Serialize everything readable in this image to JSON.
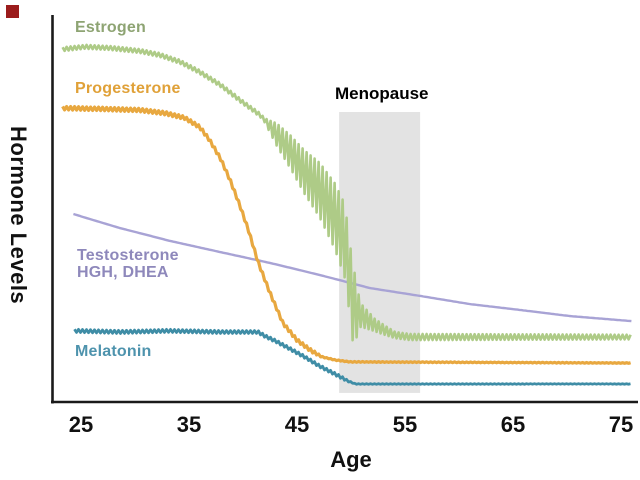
{
  "marker": {
    "name": "red-corner-marker",
    "color": "#9b1c1c"
  },
  "chart_data": {
    "type": "line",
    "title": "",
    "xlabel": "Age",
    "ylabel": "Hormone Levels",
    "x_range": [
      23,
      76
    ],
    "x_ticks": [
      25,
      35,
      45,
      55,
      65,
      75
    ],
    "x_tick_labels": [
      "25",
      "35",
      "45",
      "55",
      "65",
      "75"
    ],
    "y_axis_note": "unlabeled relative hormone level, 0-100 scale",
    "grid": "off",
    "legend_position": "labels drawn beside each curve",
    "axis_color": "#1a1a1a",
    "annotations": [
      {
        "label": "Menopause",
        "type": "shaded-band",
        "age_start": 48.9,
        "age_end": 56.4,
        "level_top": 75.0,
        "level_bottom": 2.6,
        "band_color": "#e3e3e3"
      }
    ],
    "series": [
      {
        "name": "Testosterone, HGH, DHEA",
        "label_lines": [
          "Testosterone",
          "HGH, DHEA"
        ],
        "line_color": "#a8a3d5",
        "label_color": "#8e88bb",
        "stroke_width": 2.4,
        "points": [
          [
            24.3,
            48.7
          ],
          [
            28.6,
            45.1
          ],
          [
            33.2,
            41.8
          ],
          [
            37.9,
            38.9
          ],
          [
            42.5,
            36.1
          ],
          [
            47.1,
            33.0
          ],
          [
            51.8,
            29.6
          ],
          [
            56.4,
            27.6
          ],
          [
            61.0,
            25.5
          ],
          [
            65.6,
            24.0
          ],
          [
            70.3,
            22.4
          ],
          [
            76.0,
            21.1
          ]
        ],
        "oscillation": []
      },
      {
        "name": "Melatonin",
        "label_lines": [
          "Melatonin"
        ],
        "line_color": "#3f8da6",
        "label_color": "#4e93ad",
        "stroke_width": 2.8,
        "points": [
          [
            24.4,
            18.6
          ],
          [
            28.6,
            18.3
          ],
          [
            33.2,
            18.6
          ],
          [
            37.9,
            18.3
          ],
          [
            41.4,
            18.3
          ],
          [
            42.0,
            17.3
          ],
          [
            43.0,
            16.0
          ],
          [
            44.4,
            13.9
          ],
          [
            45.7,
            11.9
          ],
          [
            47.1,
            9.5
          ],
          [
            48.5,
            7.5
          ],
          [
            49.7,
            5.7
          ],
          [
            50.4,
            4.9
          ],
          [
            76.0,
            4.9
          ]
        ],
        "oscillation": [
          [
            24.4,
            0.4
          ],
          [
            49.2,
            0.35
          ],
          [
            50.2,
            0.08
          ],
          [
            76.0,
            0.06
          ]
        ]
      },
      {
        "name": "Progesterone",
        "label_lines": [
          "Progesterone"
        ],
        "line_color": "#e8a840",
        "label_color": "#e0a138",
        "stroke_width": 3.2,
        "points": [
          [
            23.3,
            76.0
          ],
          [
            26.8,
            75.8
          ],
          [
            30.5,
            75.5
          ],
          [
            32.8,
            74.7
          ],
          [
            34.6,
            73.5
          ],
          [
            36.0,
            71.1
          ],
          [
            36.9,
            67.8
          ],
          [
            37.9,
            63.1
          ],
          [
            38.8,
            57.5
          ],
          [
            39.7,
            51.0
          ],
          [
            40.5,
            44.6
          ],
          [
            41.4,
            36.3
          ],
          [
            42.5,
            28.4
          ],
          [
            43.7,
            20.6
          ],
          [
            45.0,
            16.2
          ],
          [
            46.2,
            13.7
          ],
          [
            47.3,
            11.9
          ],
          [
            48.5,
            11.1
          ],
          [
            49.9,
            10.6
          ],
          [
            76.0,
            10.3
          ]
        ],
        "oscillation": [
          [
            23.3,
            0.45
          ],
          [
            46.5,
            0.4
          ],
          [
            47.5,
            0.1
          ],
          [
            76.0,
            0.08
          ]
        ]
      },
      {
        "name": "Estrogen",
        "label_lines": [
          "Estrogen"
        ],
        "line_color": "#aecb87",
        "label_color": "#8ea473",
        "stroke_width": 2.6,
        "points": [
          [
            23.3,
            91.2
          ],
          [
            25.4,
            91.8
          ],
          [
            27.7,
            91.5
          ],
          [
            30.5,
            90.7
          ],
          [
            32.3,
            89.7
          ],
          [
            34.2,
            87.9
          ],
          [
            36.0,
            85.3
          ],
          [
            37.9,
            82.0
          ],
          [
            39.7,
            78.1
          ],
          [
            41.6,
            74.2
          ],
          [
            43.0,
            69.6
          ],
          [
            44.4,
            64.7
          ],
          [
            45.7,
            59.5
          ],
          [
            47.1,
            54.9
          ],
          [
            48.5,
            48.2
          ],
          [
            49.4,
            42.0
          ],
          [
            49.8,
            34.3
          ],
          [
            50.1,
            26.5
          ],
          [
            50.6,
            23.2
          ],
          [
            51.3,
            21.9
          ],
          [
            52.2,
            20.1
          ],
          [
            53.1,
            18.8
          ],
          [
            54.1,
            17.5
          ],
          [
            55.5,
            17.0
          ],
          [
            76.0,
            17.0
          ]
        ],
        "oscillation": [
          [
            23.3,
            0.5
          ],
          [
            42.0,
            0.5
          ],
          [
            43.2,
            3.0
          ],
          [
            49.3,
            9.3
          ],
          [
            50.2,
            10.0
          ],
          [
            50.9,
            3.0
          ],
          [
            52.2,
            1.6
          ],
          [
            54.1,
            0.8
          ],
          [
            76.0,
            0.6
          ]
        ]
      }
    ]
  }
}
